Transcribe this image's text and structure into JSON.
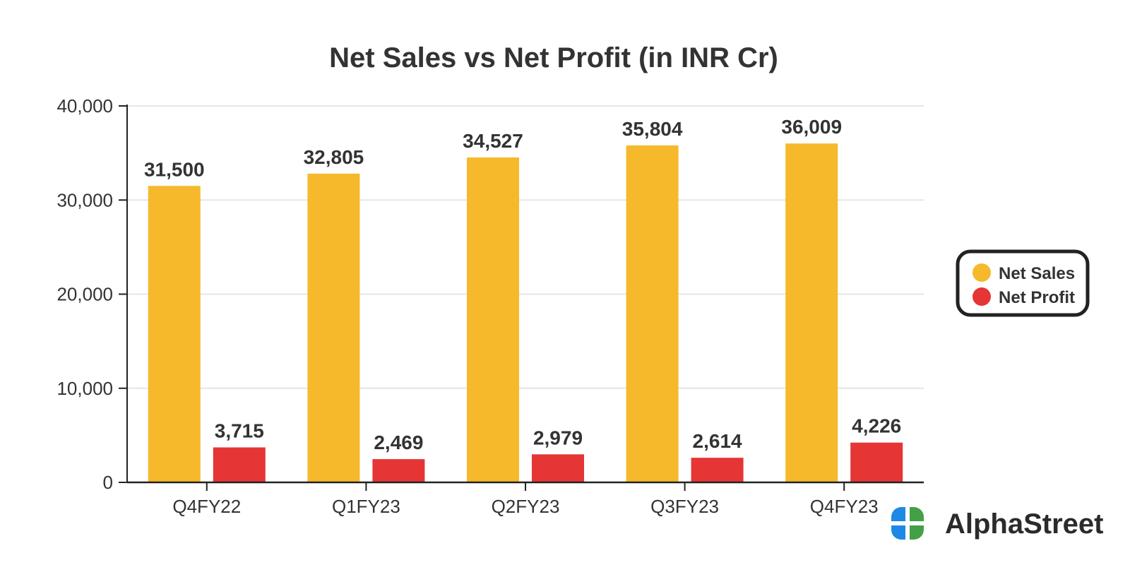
{
  "chart_data": {
    "type": "bar",
    "title": "Net Sales vs Net Profit (in INR Cr)",
    "categories": [
      "Q4FY22",
      "Q1FY23",
      "Q2FY23",
      "Q3FY23",
      "Q4FY23"
    ],
    "series": [
      {
        "name": "Net Sales",
        "color": "#F5B92B",
        "values": [
          31500,
          32805,
          34527,
          35804,
          36009
        ],
        "labels": [
          "31,500",
          "32,805",
          "34,527",
          "35,804",
          "36,009"
        ]
      },
      {
        "name": "Net Profit",
        "color": "#E53535",
        "values": [
          3715,
          2469,
          2979,
          2614,
          4226
        ],
        "labels": [
          "3,715",
          "2,469",
          "2,979",
          "2,614",
          "4,226"
        ]
      }
    ],
    "ylim": [
      0,
      40000
    ],
    "yticks": [
      0,
      10000,
      20000,
      30000,
      40000
    ],
    "ytick_labels": [
      "0",
      "10,000",
      "20,000",
      "30,000",
      "40,000"
    ],
    "grid": true,
    "legend_position": "right",
    "xlabel": "",
    "ylabel": ""
  },
  "brand": {
    "name": "AlphaStreet",
    "icon": "alphastreet-logo-icon",
    "colors": [
      "#1E88E5",
      "#43A047"
    ]
  }
}
